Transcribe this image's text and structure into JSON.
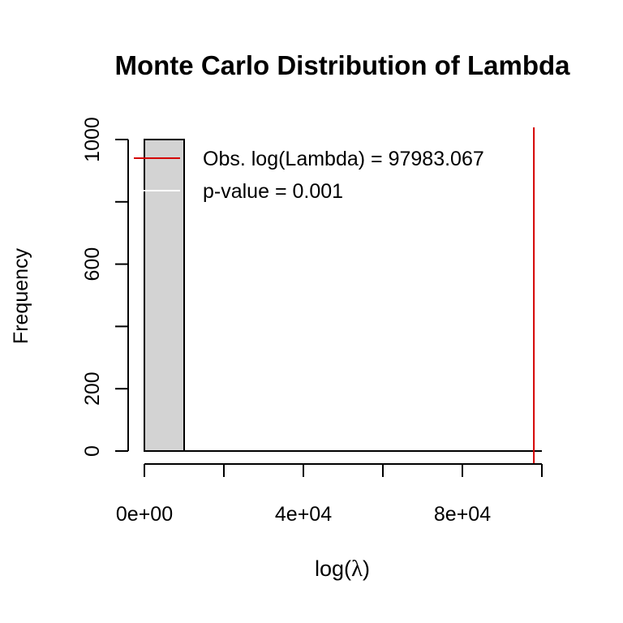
{
  "chart_data": {
    "type": "bar",
    "title": "Monte Carlo Distribution of Lambda",
    "xlabel_prefix": "log(",
    "xlabel_symbol": "λ",
    "xlabel_suffix": ")",
    "ylabel": "Frequency",
    "xlim": [
      0,
      100000
    ],
    "ylim": [
      0,
      1000
    ],
    "x_ticks": [
      0,
      20000,
      40000,
      60000,
      80000,
      100000
    ],
    "x_tick_labels": [
      "0e+00",
      "",
      "4e+04",
      "",
      "8e+04",
      ""
    ],
    "y_ticks": [
      0,
      200,
      400,
      600,
      800,
      1000
    ],
    "y_tick_labels": [
      "0",
      "200",
      "",
      "600",
      "",
      "1000"
    ],
    "bins": [
      {
        "x0": 0,
        "x1": 10000,
        "count": 1000
      },
      {
        "x0": 10000,
        "x1": 20000,
        "count": 0
      },
      {
        "x0": 20000,
        "x1": 30000,
        "count": 0
      },
      {
        "x0": 30000,
        "x1": 40000,
        "count": 0
      },
      {
        "x0": 40000,
        "x1": 50000,
        "count": 0
      },
      {
        "x0": 50000,
        "x1": 60000,
        "count": 0
      },
      {
        "x0": 60000,
        "x1": 70000,
        "count": 0
      },
      {
        "x0": 70000,
        "x1": 80000,
        "count": 0
      },
      {
        "x0": 80000,
        "x1": 90000,
        "count": 0
      },
      {
        "x0": 90000,
        "x1": 100000,
        "count": 0
      }
    ],
    "observed_value": 97983.067,
    "legend": {
      "position": "top-right",
      "entries": [
        {
          "label": "Obs. log(Lambda) = 97983.067",
          "color": "#d40000"
        },
        {
          "label": "p-value = 0.001",
          "color": "#ffffff"
        }
      ]
    },
    "colors": {
      "bar_fill": "#d3d3d3",
      "bar_stroke": "#000000",
      "observed_line": "#d40000"
    },
    "grid": false
  }
}
